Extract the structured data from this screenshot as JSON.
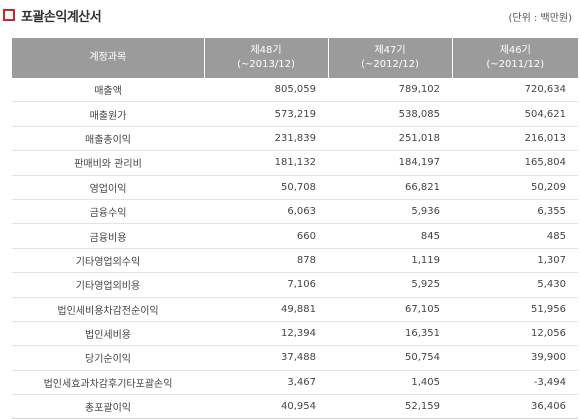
{
  "title": "포괄손익계산서",
  "unit": "(단위 : 백만원)",
  "headers": [
    {
      "label": "계정과목"
    },
    {
      "line1": "제48기",
      "line2": "(~2013/12)"
    },
    {
      "line1": "제47기",
      "line2": "(~2012/12)"
    },
    {
      "line1": "제46기",
      "line2": "(~2011/12)"
    }
  ],
  "rows": [
    {
      "item": "매출액",
      "v48": "805,059",
      "v47": "789,102",
      "v46": "720,634"
    },
    {
      "item": "매출원가",
      "v48": "573,219",
      "v47": "538,085",
      "v46": "504,621"
    },
    {
      "item": "매출총이익",
      "v48": "231,839",
      "v47": "251,018",
      "v46": "216,013"
    },
    {
      "item": "판매비와 관리비",
      "v48": "181,132",
      "v47": "184,197",
      "v46": "165,804"
    },
    {
      "item": "영업이익",
      "v48": "50,708",
      "v47": "66,821",
      "v46": "50,209"
    },
    {
      "item": "금융수익",
      "v48": "6,063",
      "v47": "5,936",
      "v46": "6,355"
    },
    {
      "item": "금융비용",
      "v48": "660",
      "v47": "845",
      "v46": "485"
    },
    {
      "item": "기타영업외수익",
      "v48": "878",
      "v47": "1,119",
      "v46": "1,307"
    },
    {
      "item": "기타영업외비용",
      "v48": "7,106",
      "v47": "5,925",
      "v46": "5,430"
    },
    {
      "item": "법인세비용차감전순이익",
      "v48": "49,881",
      "v47": "67,105",
      "v46": "51,956"
    },
    {
      "item": "법인세비용",
      "v48": "12,394",
      "v47": "16,351",
      "v46": "12,056"
    },
    {
      "item": "당기순이익",
      "v48": "37,488",
      "v47": "50,754",
      "v46": "39,900"
    },
    {
      "item": "법인세효과차감후기타포괄손익",
      "v48": "3,467",
      "v47": "1,405",
      "v46": "-3,494"
    },
    {
      "item": "총포괄이익",
      "v48": "40,954",
      "v47": "52,159",
      "v46": "36,406"
    }
  ]
}
